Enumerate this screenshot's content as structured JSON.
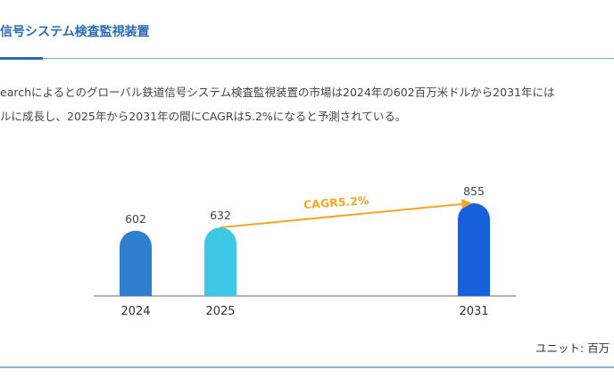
{
  "section": {
    "title": "信号システム検査監視装置",
    "paragraph_lines": [
      "earchによるとのグローバル鉄道信号システム検査監視装置の市場は2024年の602百万米ドルから2031年には",
      "ルに成長し、2025年から2031年の間にCAGRは5.2%になると予測されている。"
    ]
  },
  "chart_data": {
    "type": "bar",
    "categories": [
      "2024",
      "2025",
      "2031"
    ],
    "values": [
      602,
      632,
      855
    ],
    "colors": [
      "#2f7fd0",
      "#3ec8e6",
      "#1660dd"
    ],
    "annotation": {
      "text": "CAGR5.2%",
      "from": "2025",
      "to": "2031",
      "color": "#f5a623"
    },
    "ylim": [
      0,
      855
    ],
    "grid": false
  },
  "unit_label": "ユニット: 百万"
}
